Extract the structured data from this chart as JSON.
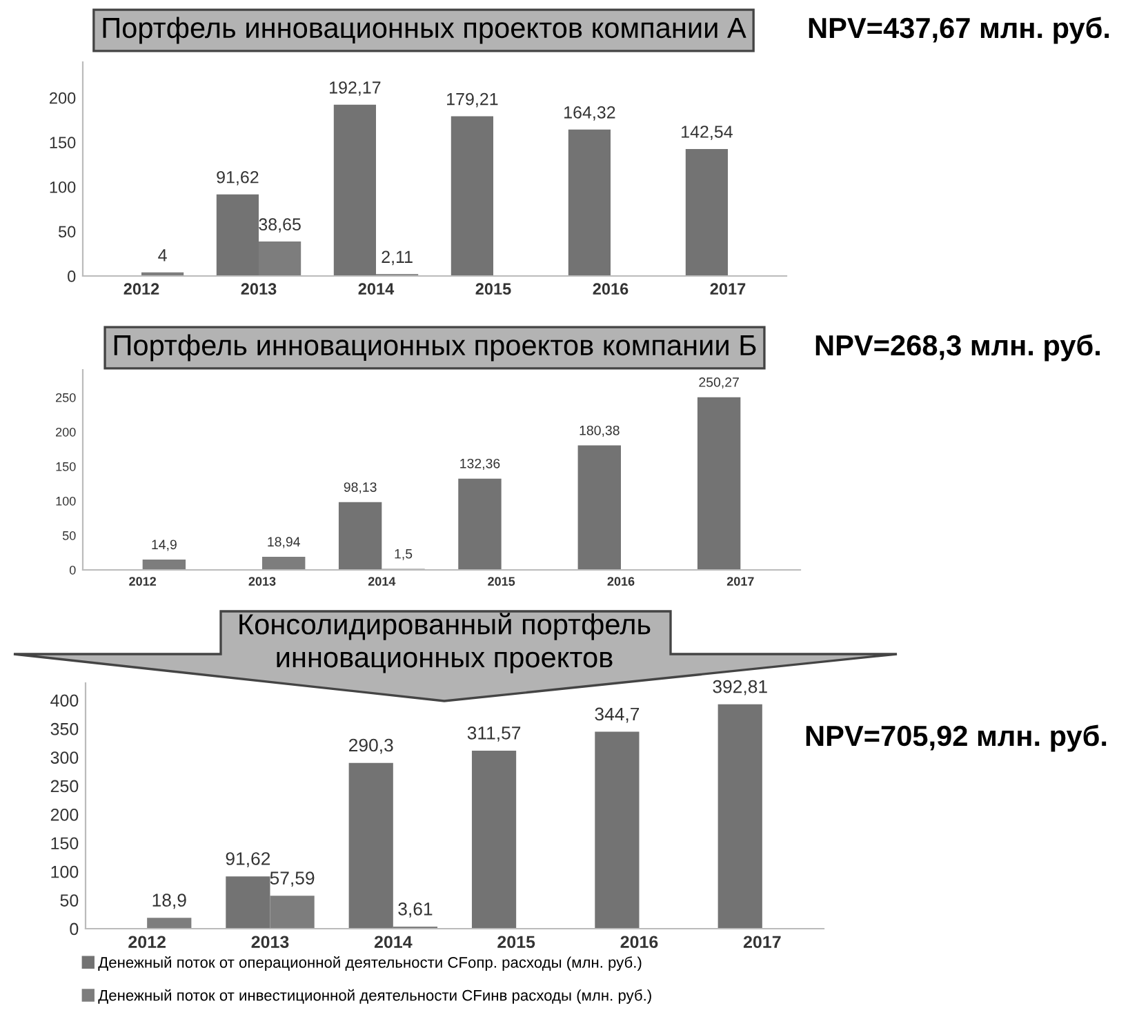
{
  "chart_data": [
    {
      "type": "bar",
      "title": "Портфель инновационных проектов компании А",
      "annotations": [
        "NPV=437,67 млн. руб."
      ],
      "categories": [
        "2012",
        "2013",
        "2014",
        "2015",
        "2016",
        "2017"
      ],
      "ylim": [
        0,
        240
      ],
      "yticks": [
        0,
        50,
        100,
        150,
        200
      ],
      "grid": false,
      "legend": false,
      "series": [
        {
          "color": "#737373",
          "values": [
            null,
            91.62,
            192.17,
            179.21,
            164.32,
            142.54
          ],
          "value_labels": [
            null,
            "91,62",
            "192,17",
            "179,21",
            "164,32",
            "142,54"
          ]
        },
        {
          "color": "#7d7d7d",
          "values": [
            4,
            38.65,
            2.11,
            null,
            null,
            null
          ],
          "value_labels": [
            "4",
            "38,65",
            "2,11",
            null,
            null,
            null
          ]
        }
      ]
    },
    {
      "type": "bar",
      "title": "Портфель инновационных проектов компании Б",
      "annotations": [
        "NPV=268,3 млн. руб."
      ],
      "categories": [
        "2012",
        "2013",
        "2014",
        "2015",
        "2016",
        "2017"
      ],
      "ylim": [
        0,
        290
      ],
      "yticks": [
        0,
        50,
        100,
        150,
        200,
        250
      ],
      "grid": false,
      "legend": false,
      "series": [
        {
          "color": "#737373",
          "values": [
            null,
            null,
            98.13,
            132.36,
            180.38,
            250.27
          ],
          "value_labels": [
            null,
            null,
            "98,13",
            "132,36",
            "180,38",
            "250,27"
          ]
        },
        {
          "color": "#7d7d7d",
          "values": [
            14.9,
            18.94,
            1.5,
            null,
            null,
            null
          ],
          "value_labels": [
            "14,9",
            "18,94",
            "1,5",
            null,
            null,
            null
          ]
        }
      ]
    },
    {
      "type": "bar",
      "title": "Консолидированный портфель\nинновационных проектов",
      "annotations": [
        "NPV=705,92 млн. руб."
      ],
      "categories": [
        "2012",
        "2013",
        "2014",
        "2015",
        "2016",
        "2017"
      ],
      "ylim": [
        0,
        430
      ],
      "yticks": [
        0,
        50,
        100,
        150,
        200,
        250,
        300,
        350,
        400
      ],
      "grid": false,
      "legend": "bottom",
      "series": [
        {
          "name": "Денежный поток от операционной деятельности CFопр. расходы (млн. руб.)",
          "color": "#737373",
          "values": [
            null,
            91.62,
            290.3,
            311.57,
            344.7,
            392.81
          ],
          "value_labels": [
            null,
            "91,62",
            "290,3",
            "311,57",
            "344,7",
            "392,81"
          ]
        },
        {
          "name": "Денежный поток от инвестиционной деятельности CFинв расходы (млн. руб.)",
          "color": "#7d7d7d",
          "values": [
            18.9,
            57.59,
            3.61,
            null,
            null,
            null
          ],
          "value_labels": [
            "18,9",
            "57,59",
            "3,61",
            null,
            null,
            null
          ]
        }
      ]
    }
  ]
}
